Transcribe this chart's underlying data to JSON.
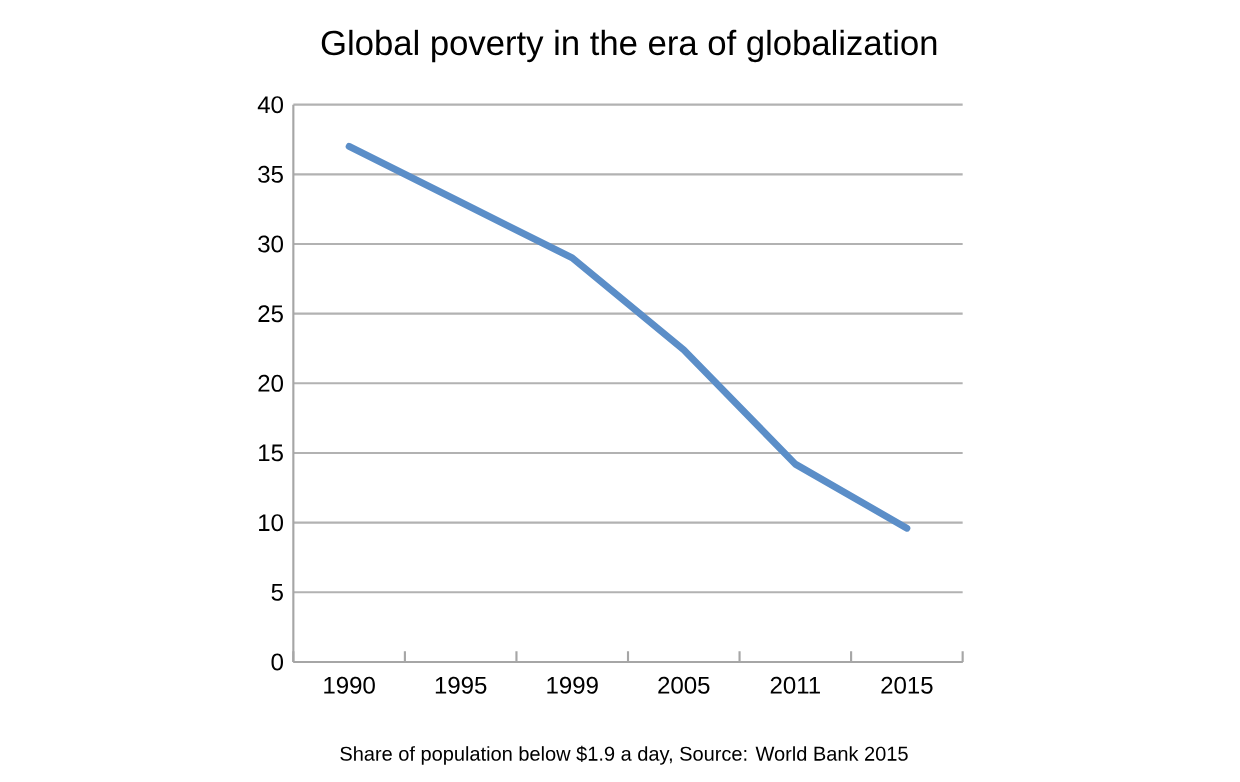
{
  "chart_data": {
    "type": "line",
    "title": "Global poverty in the era of globalization",
    "categories": [
      "1990",
      "1995",
      "1999",
      "2005",
      "2011",
      "2015"
    ],
    "values": [
      37,
      33,
      29,
      22.4,
      14.2,
      9.6
    ],
    "color": "#5b8ec8",
    "ylim": [
      0,
      40
    ],
    "yticks": [
      0,
      5,
      10,
      15,
      20,
      25,
      30,
      35,
      40
    ],
    "grid": "y",
    "marker": "none",
    "line_style": "solid",
    "annotations": [
      "Share of population below $1.9 a day, Source: World Bank 2015"
    ]
  }
}
